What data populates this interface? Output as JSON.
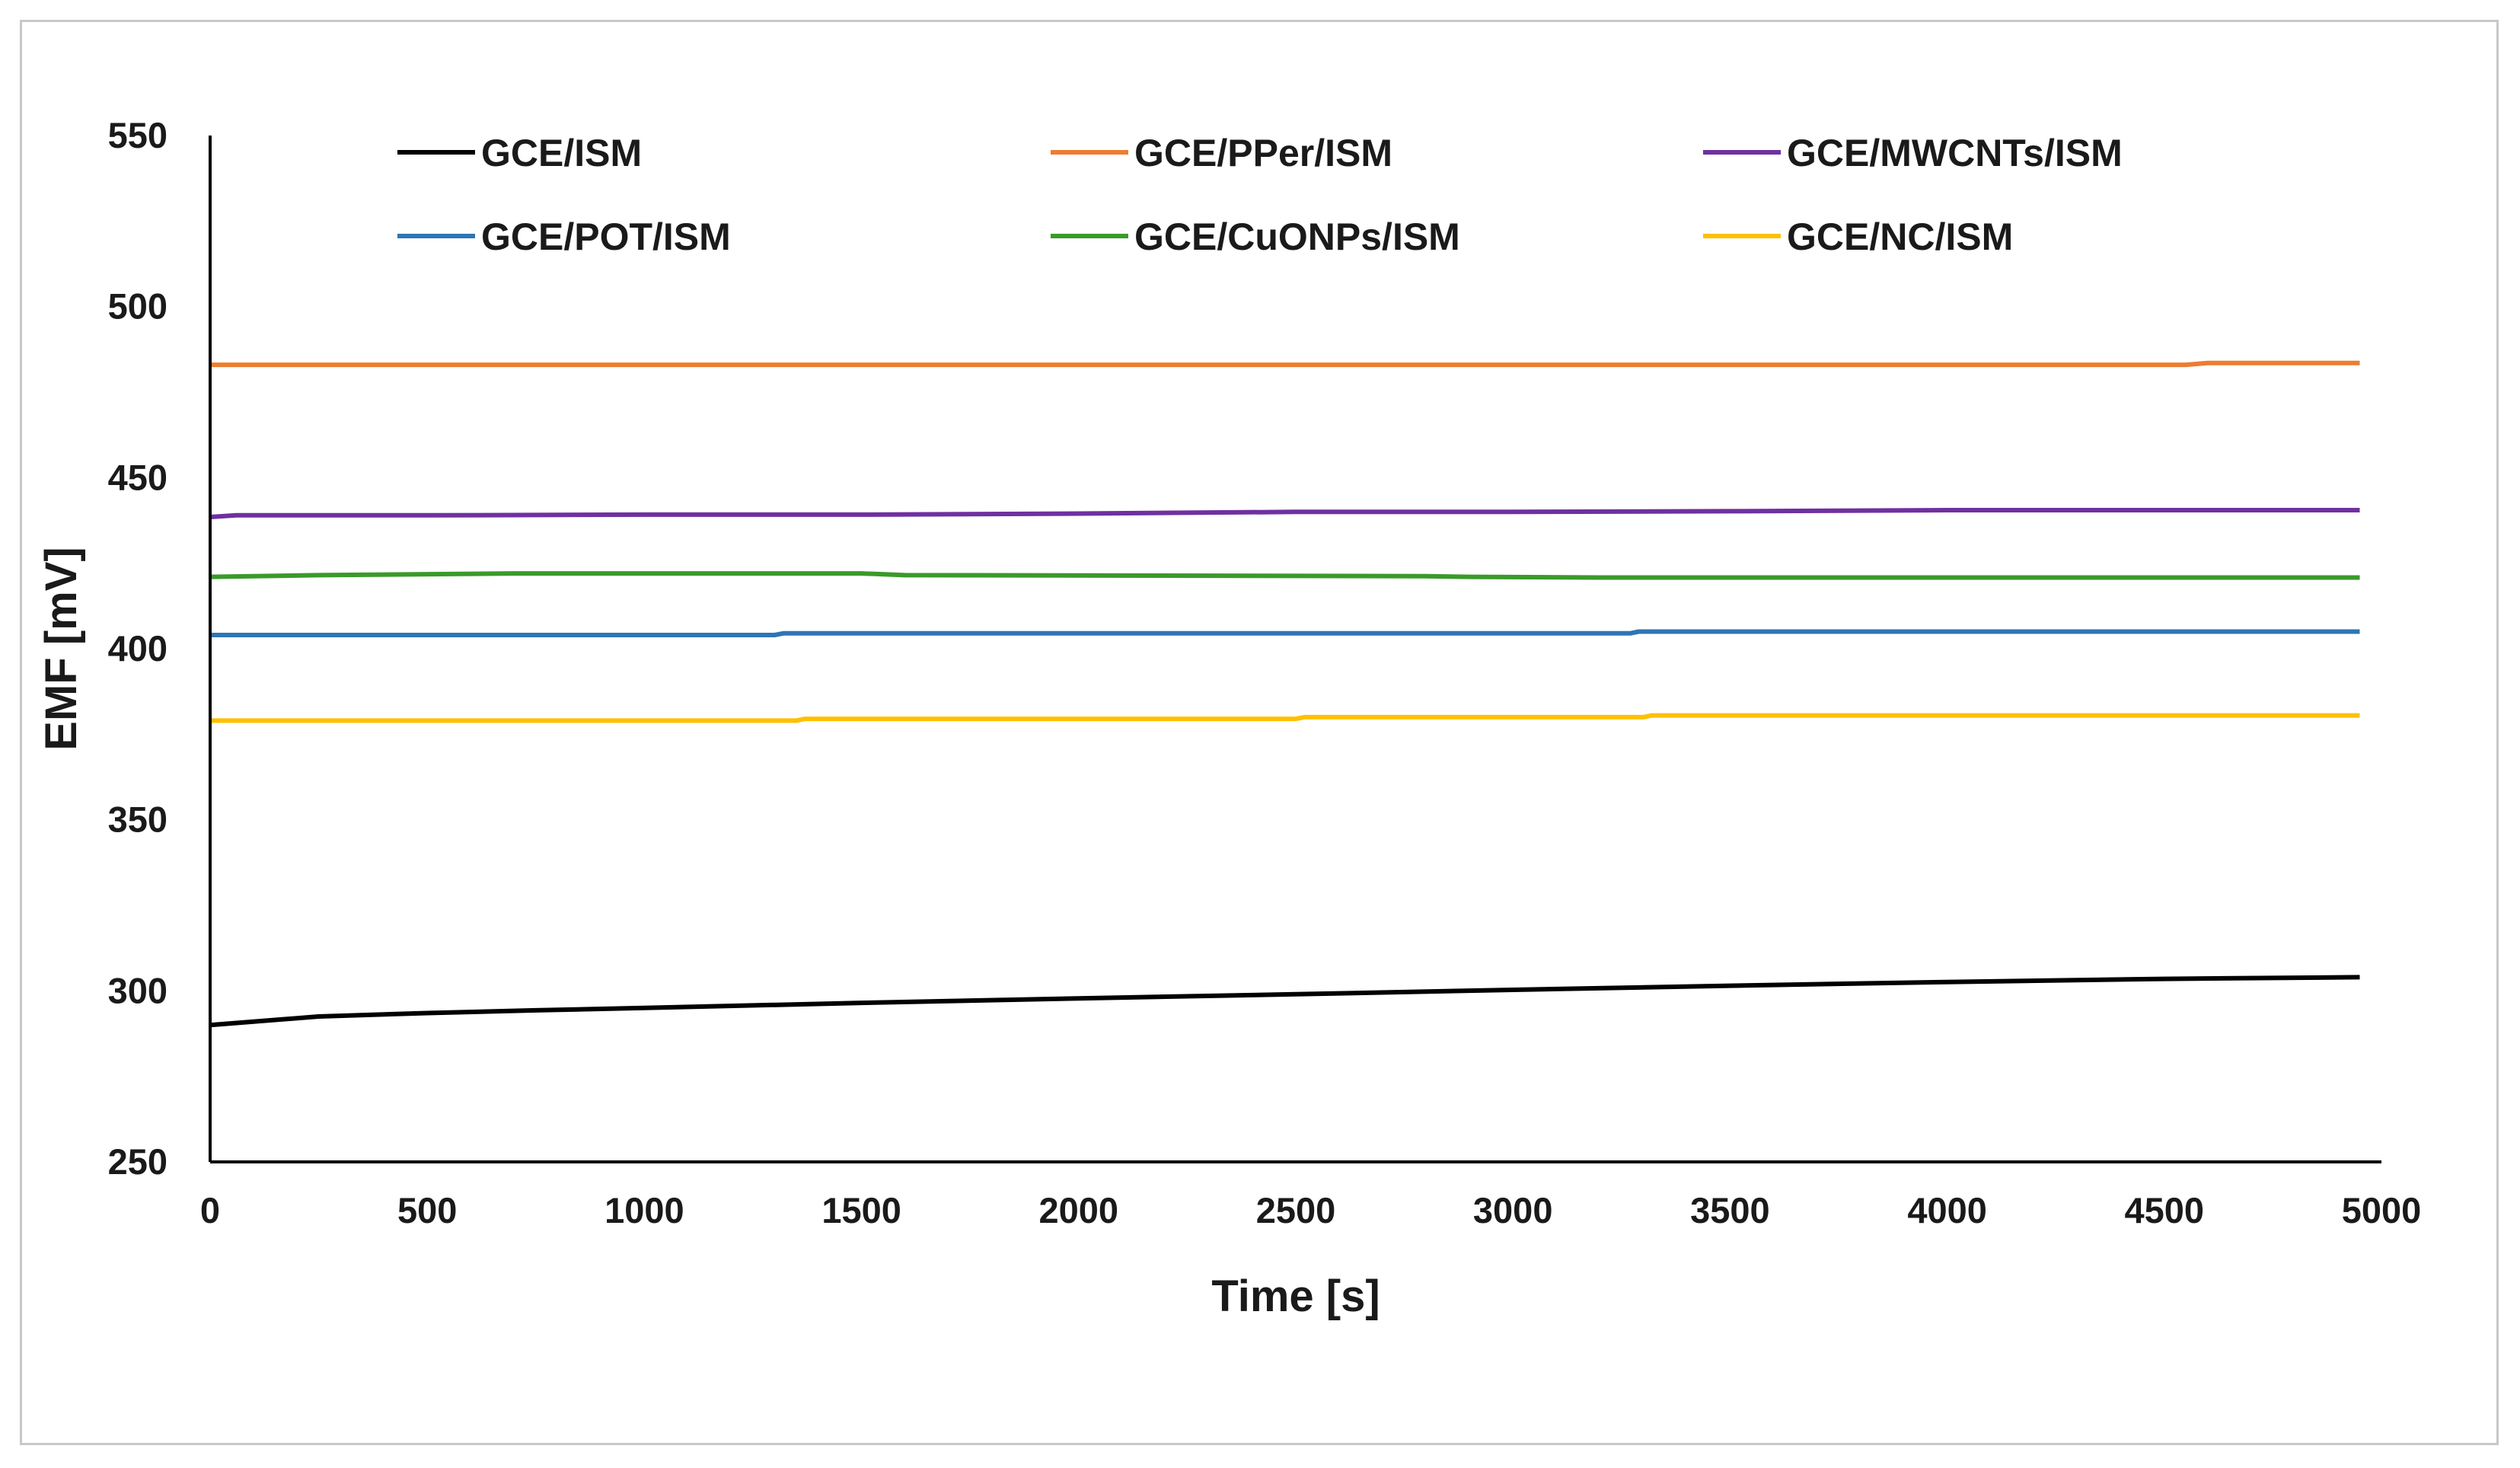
{
  "chart_data": {
    "type": "line",
    "title": "",
    "xlabel": "Time [s]",
    "ylabel": "EMF [mV]",
    "xlim": [
      0,
      5000
    ],
    "ylim": [
      250,
      550
    ],
    "xticks": [
      0,
      500,
      1000,
      1500,
      2000,
      2500,
      3000,
      3500,
      4000,
      4500,
      5000
    ],
    "yticks": [
      250,
      300,
      350,
      400,
      450,
      500,
      550
    ],
    "grid": false,
    "legend_position": "top",
    "series": [
      {
        "name": "GCE/ISM",
        "color": "#000000",
        "x": [
          0,
          100,
          250,
          500,
          750,
          1000,
          1500,
          2000,
          2500,
          3000,
          3500,
          4000,
          4500,
          4950
        ],
        "y": [
          290,
          291,
          292.5,
          293.5,
          294.3,
          295,
          296.5,
          297.8,
          299,
          300.3,
          301.5,
          302.6,
          303.5,
          304
        ]
      },
      {
        "name": "GCE/PPer/ISM",
        "color": "#ED7D31",
        "x": [
          0,
          1000,
          2000,
          3000,
          4000,
          4550,
          4600,
          4950
        ],
        "y": [
          483,
          483,
          483,
          483,
          483,
          483,
          483.5,
          483.5
        ]
      },
      {
        "name": "GCE/MWCNTs/ISM",
        "color": "#7030A0",
        "x": [
          0,
          60,
          500,
          1000,
          1500,
          2000,
          2500,
          3000,
          3500,
          4000,
          4500,
          4950
        ],
        "y": [
          438.5,
          439,
          439,
          439.2,
          439.2,
          439.5,
          440,
          440,
          440.2,
          440.5,
          440.5,
          440.5
        ]
      },
      {
        "name": "GCE/POT/ISM",
        "color": "#2E75B6",
        "x": [
          0,
          1300,
          1320,
          3270,
          3290,
          4950
        ],
        "y": [
          404,
          404,
          404.5,
          404.5,
          405,
          405
        ]
      },
      {
        "name": "GCE/CuONPs/ISM",
        "color": "#3A9A2A",
        "x": [
          0,
          250,
          700,
          1500,
          1600,
          2800,
          2900,
          3200,
          4950
        ],
        "y": [
          421,
          421.5,
          422,
          422,
          421.5,
          421.2,
          421,
          420.8,
          420.8
        ]
      },
      {
        "name": "GCE/NC/ISM",
        "color": "#FFC000",
        "x": [
          0,
          1350,
          1370,
          2500,
          2520,
          3300,
          3320,
          4950
        ],
        "y": [
          379,
          379,
          379.5,
          379.5,
          380,
          380,
          380.5,
          380.5
        ]
      }
    ]
  }
}
